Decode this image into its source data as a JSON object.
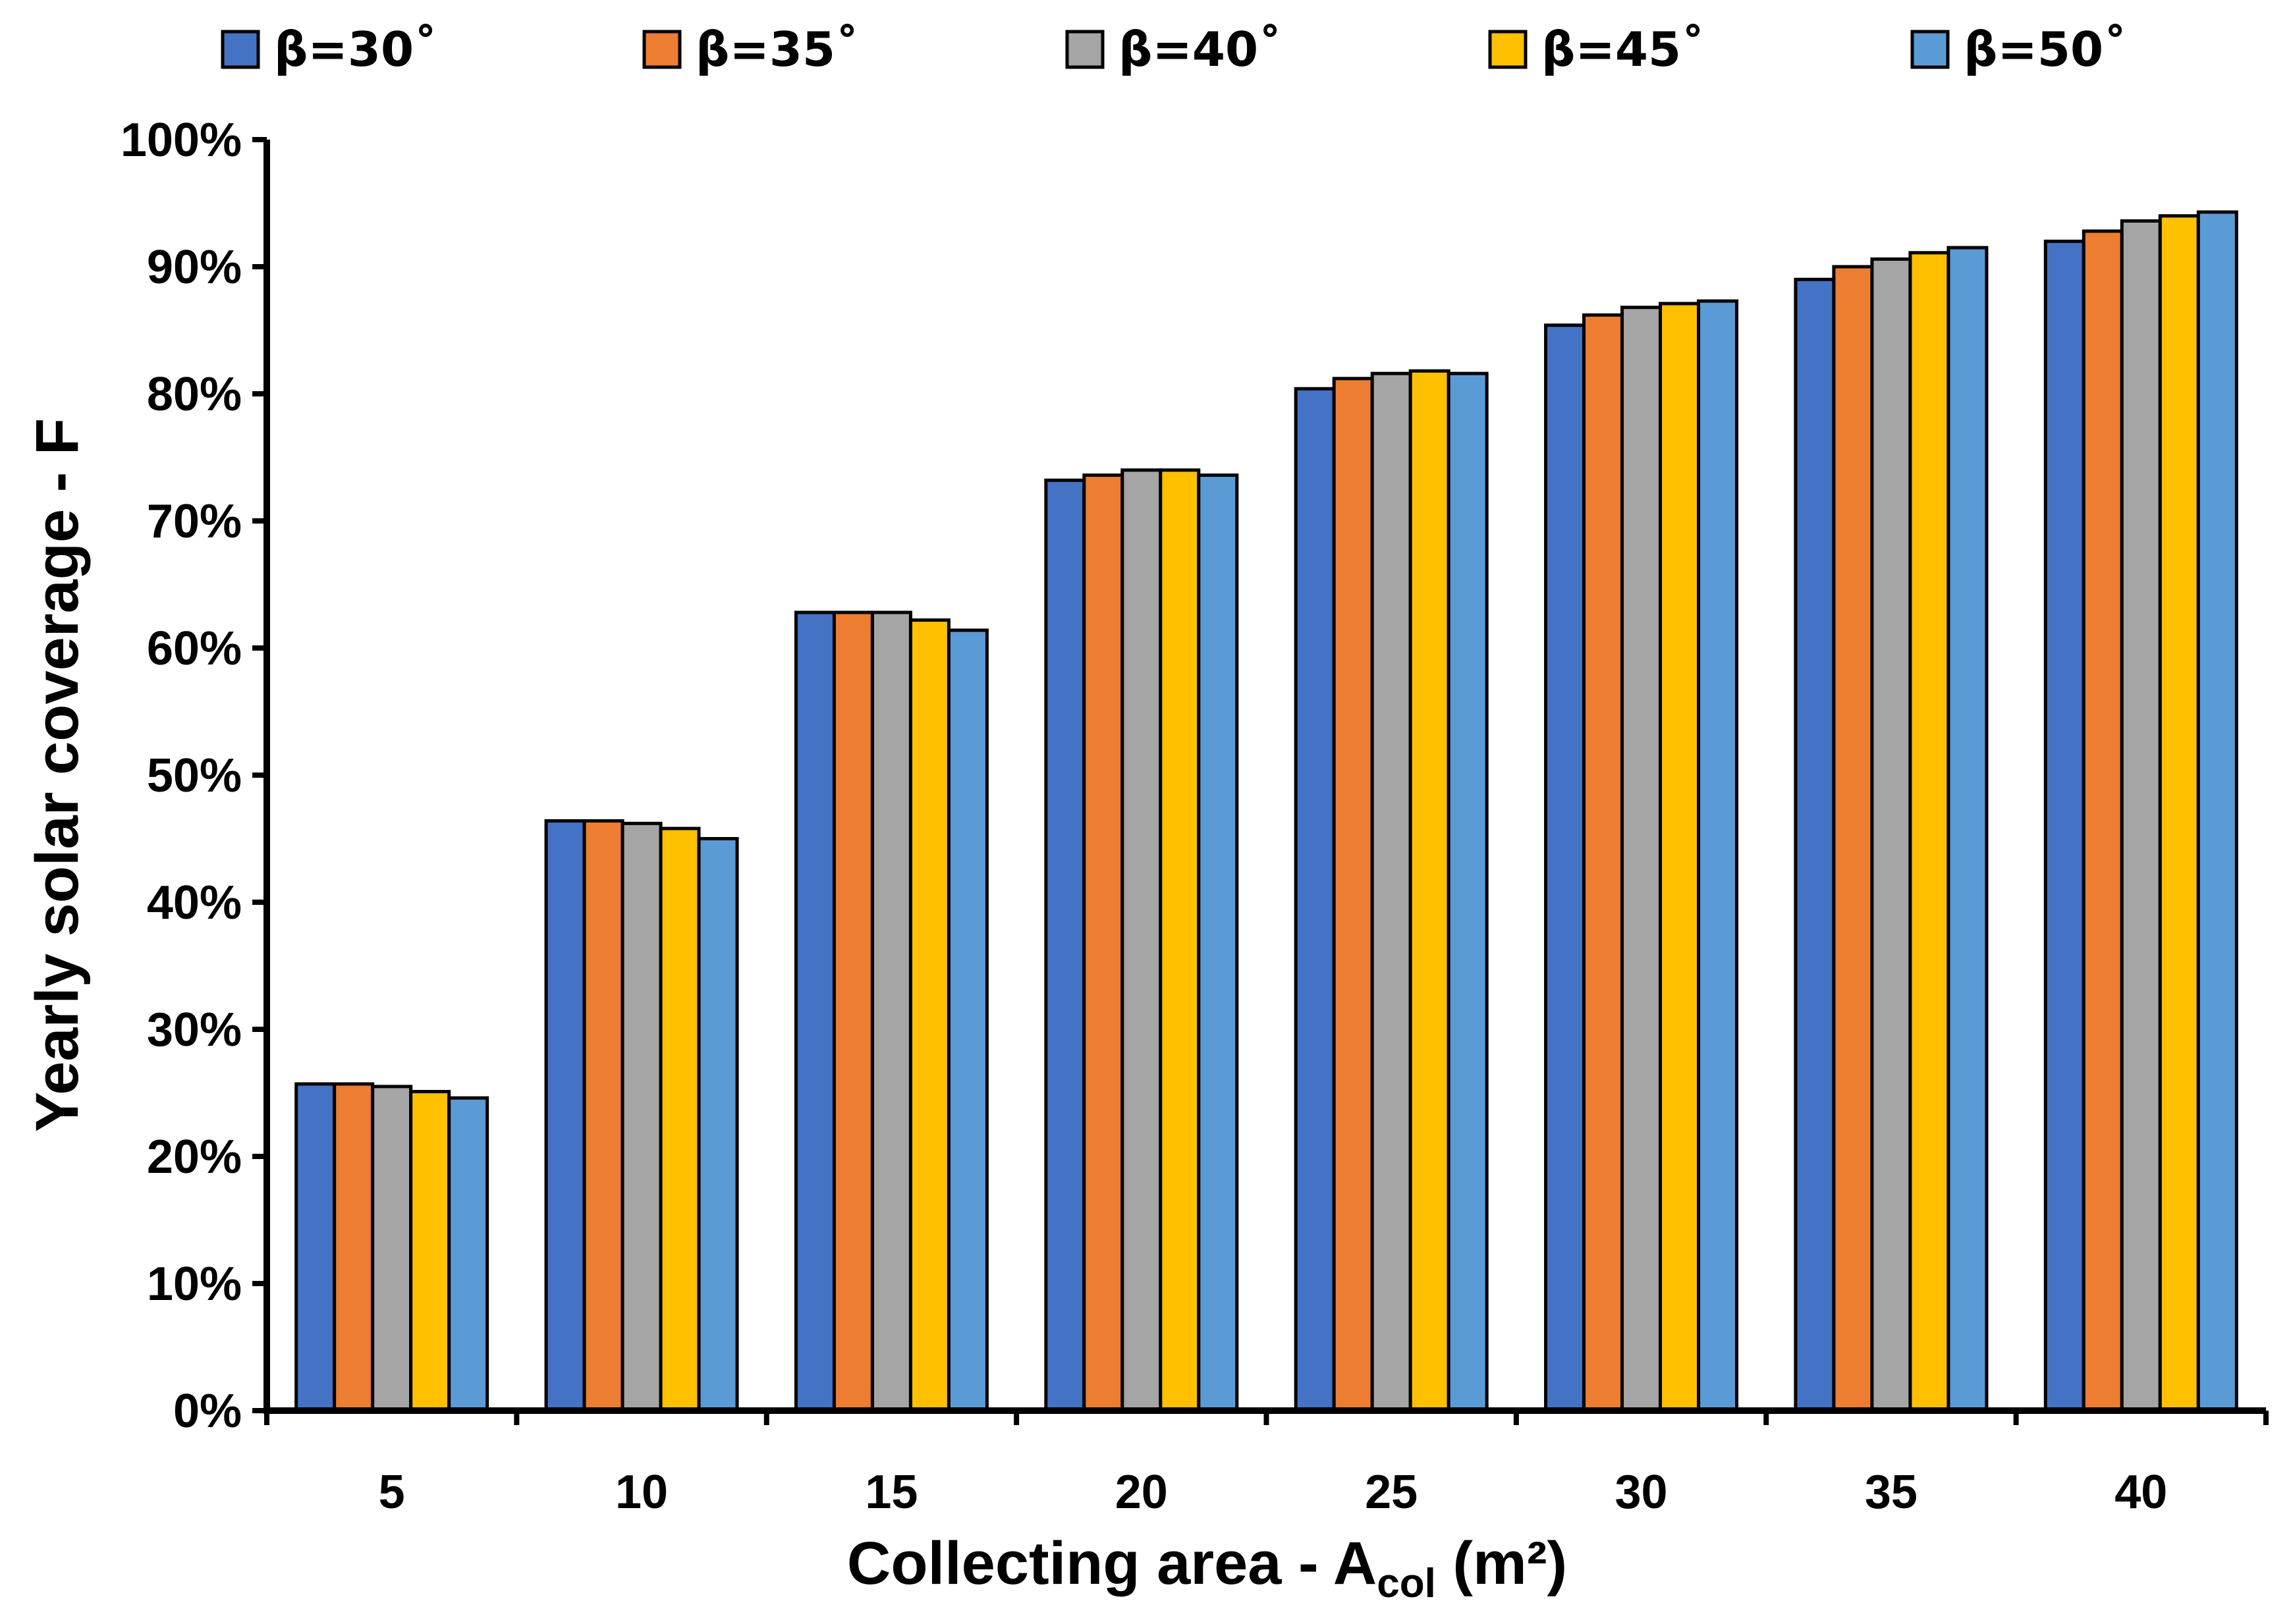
{
  "chart_data": {
    "type": "bar",
    "categories": [
      "5",
      "10",
      "15",
      "20",
      "25",
      "30",
      "35",
      "40"
    ],
    "series": [
      {
        "name": "β=30˚",
        "color": "#4472C4",
        "values": [
          25.7,
          46.4,
          62.8,
          73.2,
          80.4,
          85.4,
          89.0,
          92.0
        ]
      },
      {
        "name": "β=35˚",
        "color": "#ED7D31",
        "values": [
          25.7,
          46.4,
          62.8,
          73.6,
          81.2,
          86.2,
          90.0,
          92.8
        ]
      },
      {
        "name": "β=40˚",
        "color": "#A5A5A5",
        "values": [
          25.5,
          46.2,
          62.8,
          74.0,
          81.6,
          86.8,
          90.6,
          93.6
        ]
      },
      {
        "name": "β=45˚",
        "color": "#FFC000",
        "values": [
          25.1,
          45.8,
          62.2,
          74.0,
          81.8,
          87.1,
          91.1,
          94.0
        ]
      },
      {
        "name": "β=50˚",
        "color": "#5B9BD5",
        "values": [
          24.6,
          45.0,
          61.4,
          73.6,
          81.6,
          87.3,
          91.5,
          94.3
        ]
      }
    ],
    "ylim": [
      0,
      100
    ],
    "yticks": [
      "0%",
      "10%",
      "20%",
      "30%",
      "40%",
      "50%",
      "60%",
      "70%",
      "80%",
      "90%",
      "100%"
    ],
    "ylabel": "Yearly solar coverage - F",
    "xlabel": {
      "main": "Collecting area - A",
      "sub": "col",
      "suffix": " (m²)"
    },
    "legend_position": "top",
    "grid": false
  }
}
